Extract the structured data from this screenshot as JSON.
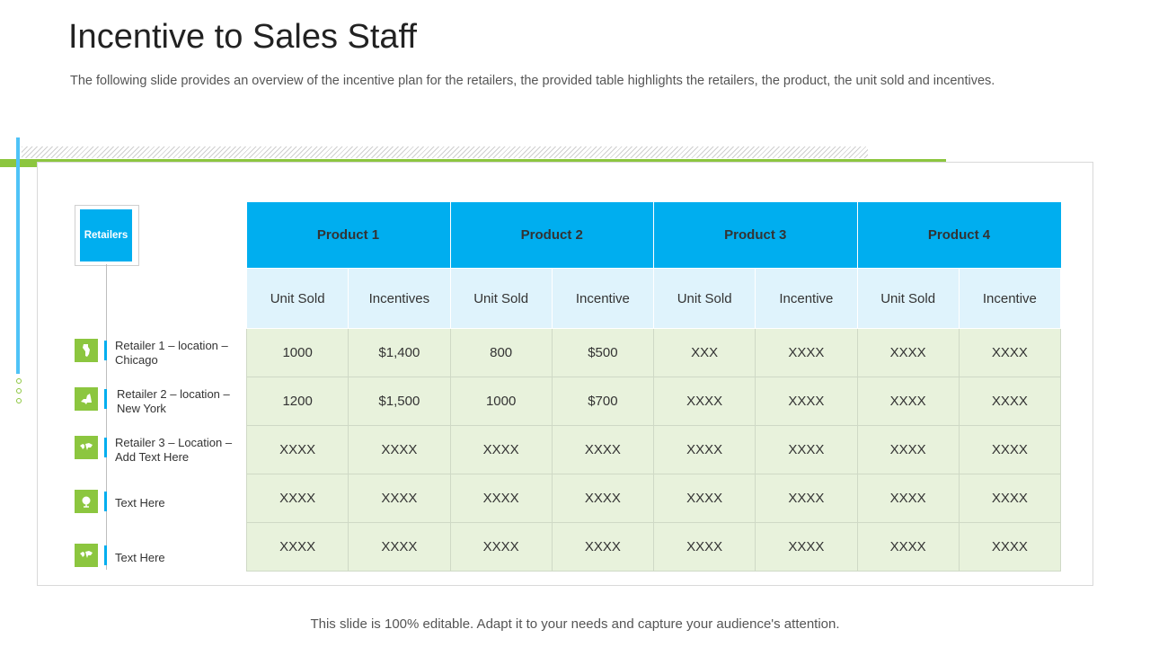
{
  "slide": {
    "title": "Incentive to Sales Staff",
    "subtitle": "The following slide provides an overview of the incentive plan for the retailers, the provided table highlights the retailers, the product, the unit sold and incentives.",
    "footer": "This slide is 100% editable. Adapt it to your needs and capture your audience's attention."
  },
  "colors": {
    "accent_blue": "#00aeef",
    "accent_green": "#8cc63f",
    "sub_header_bg": "#dff3fc",
    "cell_bg": "#e8f2dc"
  },
  "retailers": {
    "header": "Retailers",
    "items": [
      {
        "label": "Retailer 1 – location – Chicago",
        "icon": "map-illinois-icon"
      },
      {
        "label": "Retailer 2 – location – New York",
        "icon": "map-newyork-icon"
      },
      {
        "label": "Retailer 3 – Location – Add Text Here",
        "icon": "world-map-icon"
      },
      {
        "label": "Text Here",
        "icon": "globe-icon"
      },
      {
        "label": "Text Here",
        "icon": "world-map-icon"
      }
    ]
  },
  "table": {
    "products": [
      "Product 1",
      "Product 2",
      "Product 3",
      "Product 4"
    ],
    "sub_headers": [
      "Unit Sold",
      "Incentives",
      "Unit Sold",
      "Incentive",
      "Unit Sold",
      "Incentive",
      "Unit Sold",
      "Incentive"
    ],
    "rows": [
      [
        "1000",
        "$1,400",
        "800",
        "$500",
        "XXX",
        "XXXX",
        "XXXX",
        "XXXX"
      ],
      [
        "1200",
        "$1,500",
        "1000",
        "$700",
        "XXXX",
        "XXXX",
        "XXXX",
        "XXXX"
      ],
      [
        "XXXX",
        "XXXX",
        "XXXX",
        "XXXX",
        "XXXX",
        "XXXX",
        "XXXX",
        "XXXX"
      ],
      [
        "XXXX",
        "XXXX",
        "XXXX",
        "XXXX",
        "XXXX",
        "XXXX",
        "XXXX",
        "XXXX"
      ],
      [
        "XXXX",
        "XXXX",
        "XXXX",
        "XXXX",
        "XXXX",
        "XXXX",
        "XXXX",
        "XXXX"
      ]
    ]
  }
}
